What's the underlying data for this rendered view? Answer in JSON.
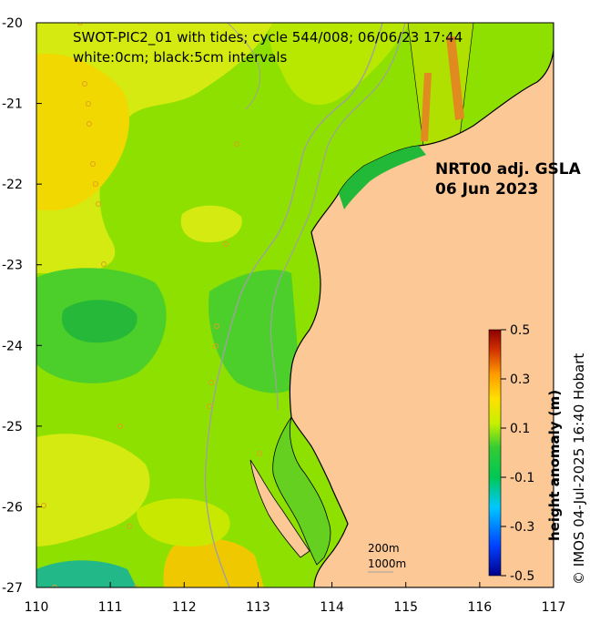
{
  "title": {
    "line1": "SWOT-PIC2_01 with tides; cycle 544/008; 06/06/23 17:44",
    "line2": "white:0cm; black:5cm intervals"
  },
  "product": {
    "line1": "NRT00 adj. GSLA",
    "line2": "06 Jun 2023"
  },
  "credit": "© IMOS 04-Jul-2025 16:40 Hobart",
  "map_data": {
    "lon_range": [
      110,
      117
    ],
    "lat_range": [
      -27,
      -20
    ],
    "lon_ticks": [
      "110",
      "111",
      "112",
      "113",
      "114",
      "115",
      "116",
      "117"
    ],
    "lat_ticks": [
      "-20",
      "-21",
      "-22",
      "-23",
      "-24",
      "-25",
      "-26",
      "-27"
    ],
    "isobaths": [
      "200m",
      "1000m"
    ]
  },
  "colorbar": {
    "label": "height anomaly (m)",
    "ticks": [
      "0.5",
      "0.3",
      "0.1",
      "-0.1",
      "-0.3",
      "-0.5"
    ],
    "range": [
      -0.5,
      0.5
    ],
    "colors": [
      "#00008b",
      "#0040ff",
      "#00c8ff",
      "#00c853",
      "#33cc33",
      "#c8f000",
      "#ffe000",
      "#ff9a00",
      "#d03000",
      "#8b0000"
    ]
  },
  "colors": {
    "land": "#fbc896",
    "ocean_base": "#8ee000",
    "coast": "#000000",
    "isobath": "#a0a0a0"
  }
}
